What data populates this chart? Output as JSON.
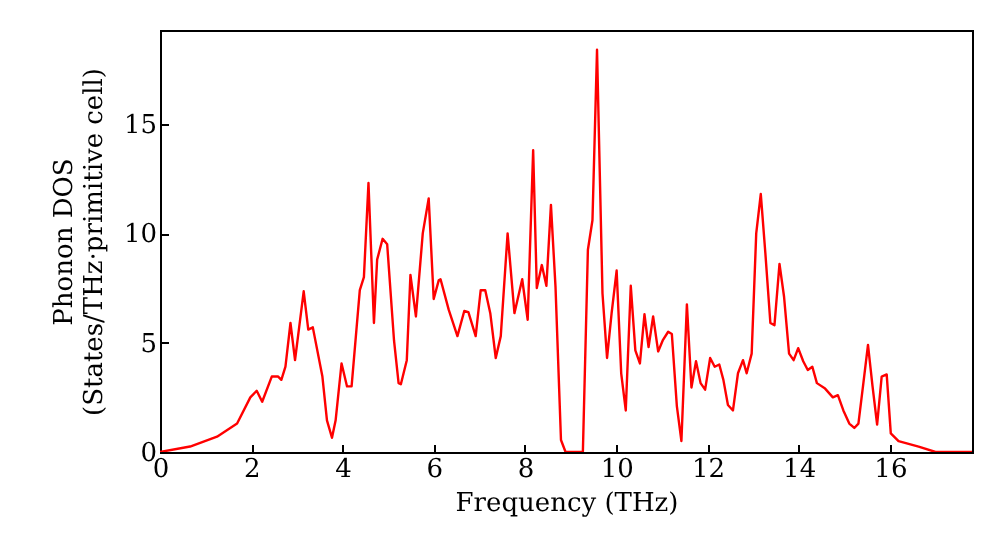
{
  "chart_data": {
    "type": "line",
    "xlabel": "Frequency (THz)",
    "ylabel": "Phonon DOS\n(States/THz·primitive cell)",
    "xlim": [
      0,
      17.8
    ],
    "ylim": [
      0,
      19.3
    ],
    "xticks": [
      0,
      2,
      4,
      6,
      8,
      10,
      12,
      14,
      16
    ],
    "yticks": [
      0,
      5,
      10,
      15
    ],
    "grid": false,
    "marker": "none",
    "line_style": "solid",
    "series": [
      {
        "color": "#ff0000",
        "x": [
          0,
          0.66,
          1.25,
          1.69,
          1.98,
          2.12,
          2.24,
          2.45,
          2.59,
          2.66,
          2.75,
          2.86,
          2.96,
          3.15,
          3.25,
          3.35,
          3.56,
          3.66,
          3.77,
          3.85,
          3.98,
          4.1,
          4.2,
          4.38,
          4.47,
          4.57,
          4.69,
          4.76,
          4.88,
          4.98,
          5.13,
          5.23,
          5.28,
          5.41,
          5.49,
          5.61,
          5.76,
          5.89,
          6.0,
          6.11,
          6.15,
          6.33,
          6.52,
          6.67,
          6.76,
          6.92,
          7.03,
          7.13,
          7.24,
          7.36,
          7.47,
          7.62,
          7.77,
          7.94,
          8.06,
          8.18,
          8.26,
          8.37,
          8.47,
          8.57,
          8.67,
          8.79,
          8.89,
          9.27,
          9.38,
          9.48,
          9.58,
          9.7,
          9.8,
          9.9,
          10.01,
          10.11,
          10.21,
          10.32,
          10.42,
          10.52,
          10.62,
          10.71,
          10.81,
          10.92,
          11.02,
          11.14,
          11.22,
          11.33,
          11.43,
          11.55,
          11.65,
          11.75,
          11.85,
          11.95,
          12.06,
          12.16,
          12.26,
          12.35,
          12.45,
          12.56,
          12.67,
          12.78,
          12.86,
          12.97,
          13.07,
          13.17,
          13.27,
          13.38,
          13.47,
          13.58,
          13.68,
          13.79,
          13.89,
          13.99,
          14.1,
          14.2,
          14.3,
          14.4,
          14.58,
          14.75,
          14.86,
          14.98,
          15.11,
          15.22,
          15.31,
          15.41,
          15.52,
          15.62,
          15.72,
          15.82,
          15.93,
          16.02,
          16.19,
          16.63,
          17.0,
          17.8
        ],
        "values": [
          0,
          0.25,
          0.7,
          1.3,
          2.5,
          2.8,
          2.3,
          3.45,
          3.45,
          3.3,
          3.9,
          5.9,
          4.2,
          7.35,
          5.6,
          5.7,
          3.45,
          1.45,
          0.65,
          1.45,
          4.05,
          3.0,
          3.0,
          7.4,
          8.0,
          12.3,
          5.9,
          8.8,
          9.75,
          9.5,
          5.1,
          3.15,
          3.1,
          4.2,
          8.1,
          6.2,
          10.0,
          11.6,
          7.0,
          7.85,
          7.9,
          6.5,
          5.3,
          6.45,
          6.4,
          5.3,
          7.4,
          7.4,
          6.35,
          4.3,
          5.3,
          10.0,
          6.35,
          7.9,
          6.05,
          13.8,
          7.5,
          8.55,
          7.6,
          11.3,
          7.55,
          0.55,
          0,
          0,
          9.25,
          10.6,
          18.4,
          7.25,
          4.3,
          6.35,
          8.3,
          3.6,
          1.9,
          7.6,
          4.65,
          4.05,
          6.3,
          4.8,
          6.2,
          4.6,
          5.1,
          5.5,
          5.4,
          2.1,
          0.5,
          6.75,
          2.95,
          4.15,
          3.15,
          2.85,
          4.3,
          3.9,
          4.0,
          3.3,
          2.15,
          1.9,
          3.6,
          4.2,
          3.6,
          4.5,
          10.0,
          11.8,
          9.1,
          5.9,
          5.8,
          8.6,
          7.1,
          4.5,
          4.2,
          4.75,
          4.15,
          3.75,
          3.9,
          3.15,
          2.9,
          2.5,
          2.6,
          1.9,
          1.3,
          1.1,
          1.3,
          3.0,
          4.9,
          3.0,
          1.25,
          3.45,
          3.55,
          0.85,
          0.5,
          0.25,
          0,
          0
        ]
      }
    ]
  }
}
